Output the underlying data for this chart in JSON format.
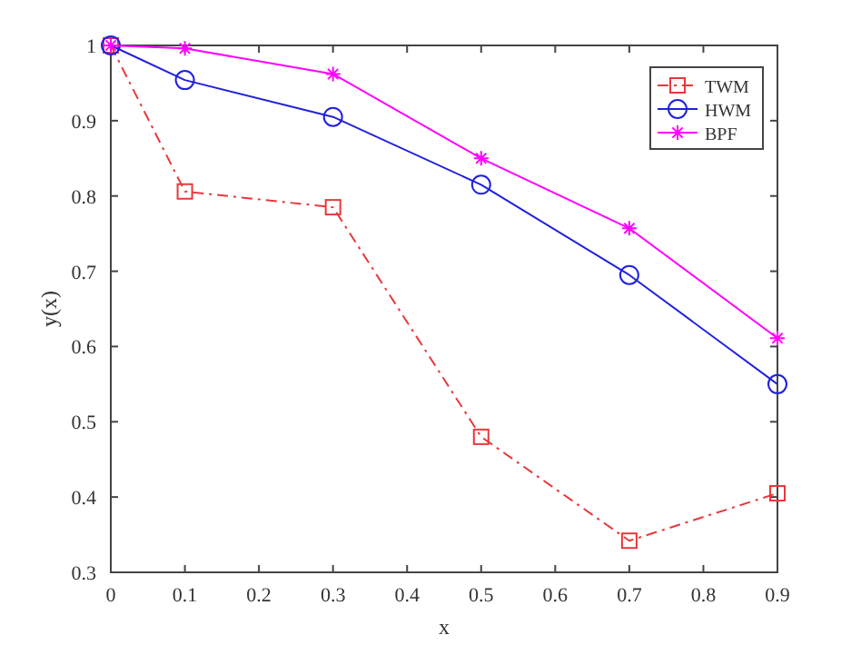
{
  "chart_data": {
    "type": "line",
    "xlabel": "x",
    "ylabel": "y(x)",
    "x": [
      0,
      0.1,
      0.3,
      0.5,
      0.7,
      0.9
    ],
    "series": [
      {
        "name": "TWM",
        "color": "#e8383b",
        "values": [
          1,
          0.806,
          0.785,
          0.48,
          0.342,
          0.405
        ],
        "marker": "square",
        "line_style": "dashed"
      },
      {
        "name": "HWM",
        "color": "#2020e0",
        "values": [
          1,
          0.954,
          0.905,
          0.815,
          0.695,
          0.55
        ],
        "marker": "circle",
        "line_style": "solid"
      },
      {
        "name": "BPF",
        "color": "#ff00ff",
        "values": [
          1,
          0.996,
          0.962,
          0.85,
          0.757,
          0.611
        ],
        "marker": "cross",
        "line_style": "solid"
      }
    ],
    "xlim": [
      0,
      0.9
    ],
    "xticks": [
      0,
      0.1,
      0.2,
      0.3,
      0.4,
      0.5,
      0.6,
      0.7,
      0.8,
      0.9
    ],
    "ylim": [
      0.3,
      1
    ],
    "yticks": [
      0.3,
      0.4,
      0.5,
      0.6,
      0.7,
      0.8,
      0.9,
      1
    ],
    "grid": false,
    "legend": "top right"
  }
}
